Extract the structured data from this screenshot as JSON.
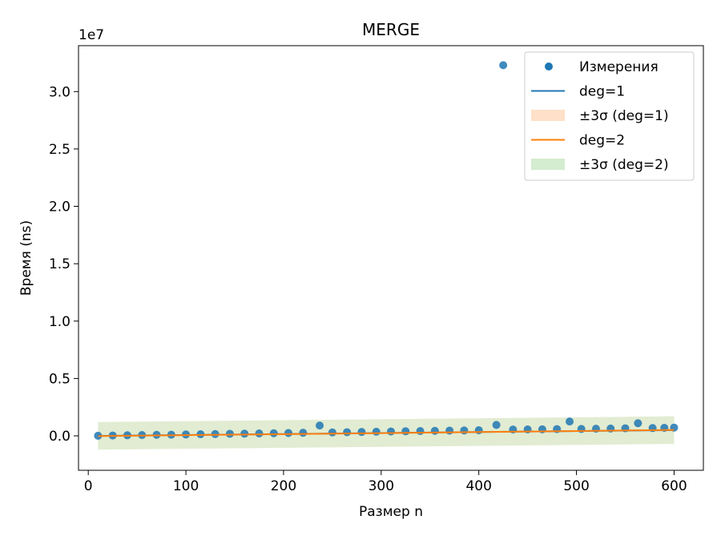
{
  "chart_data": {
    "type": "scatter",
    "title": "MERGE",
    "xlabel": "Размер n",
    "ylabel": "Время (ns)",
    "y_offset_label": "1e7",
    "xlim": [
      -10,
      630
    ],
    "ylim": [
      -3000000,
      34000000
    ],
    "x_ticks": [
      0,
      100,
      200,
      300,
      400,
      500,
      600
    ],
    "y_ticks": [
      0,
      5000000,
      10000000,
      15000000,
      20000000,
      25000000,
      30000000
    ],
    "x_tick_labels": [
      "0",
      "100",
      "200",
      "300",
      "400",
      "500",
      "600"
    ],
    "y_tick_labels": [
      "0.0",
      "0.5",
      "1.0",
      "1.5",
      "2.0",
      "2.5",
      "3.0"
    ],
    "grid": false,
    "legend_position": "top-right",
    "legend": [
      {
        "label": "Измерения",
        "kind": "marker",
        "color": "#1f77b4"
      },
      {
        "label": "deg=1",
        "kind": "line",
        "color": "#1f77b4"
      },
      {
        "label": "±3σ (deg=1)",
        "kind": "patch",
        "color": "#ffe0c8"
      },
      {
        "label": "deg=2",
        "kind": "line",
        "color": "#ff7f0e"
      },
      {
        "label": "±3σ (deg=2)",
        "kind": "patch",
        "color": "#d4ecd0"
      }
    ],
    "series": [
      {
        "name": "Измерения",
        "kind": "scatter",
        "color": "#1f77b4",
        "x": [
          10,
          25,
          40,
          55,
          70,
          85,
          100,
          115,
          130,
          145,
          160,
          175,
          190,
          205,
          220,
          237,
          250,
          265,
          280,
          295,
          310,
          325,
          340,
          355,
          370,
          385,
          400,
          418,
          425,
          435,
          450,
          465,
          480,
          493,
          505,
          520,
          535,
          550,
          563,
          578,
          590,
          600
        ],
        "y": [
          10000,
          30000,
          50000,
          70000,
          90000,
          100000,
          120000,
          140000,
          160000,
          180000,
          190000,
          210000,
          230000,
          250000,
          270000,
          900000,
          300000,
          320000,
          340000,
          360000,
          380000,
          400000,
          420000,
          440000,
          460000,
          470000,
          490000,
          950000,
          32300000,
          550000,
          560000,
          570000,
          590000,
          1250000,
          600000,
          620000,
          640000,
          660000,
          1100000,
          680000,
          700000,
          720000
        ]
      },
      {
        "name": "deg=1",
        "kind": "line",
        "color": "#1f77b4",
        "x": [
          10,
          600
        ],
        "y": [
          0,
          500000
        ]
      },
      {
        "name": "±3σ (deg=1)",
        "kind": "band",
        "color": "#ffe0c8",
        "x": [
          10,
          600
        ],
        "lower": [
          -1200000,
          -700000
        ],
        "upper": [
          1200000,
          1700000
        ]
      },
      {
        "name": "deg=2",
        "kind": "line",
        "color": "#ff7f0e",
        "x": [
          10,
          100,
          200,
          300,
          400,
          500,
          600
        ],
        "y": [
          -20000,
          60000,
          150000,
          240000,
          330000,
          420000,
          520000
        ]
      },
      {
        "name": "±3σ (deg=2)",
        "kind": "band",
        "color": "#d4ecd0",
        "x": [
          10,
          600
        ],
        "lower": [
          -1200000,
          -700000
        ],
        "upper": [
          1200000,
          1700000
        ]
      }
    ]
  }
}
